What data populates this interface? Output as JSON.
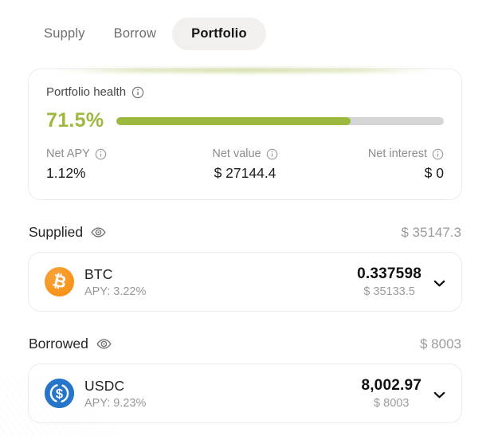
{
  "tabs": [
    {
      "label": "Supply",
      "active": false
    },
    {
      "label": "Borrow",
      "active": false
    },
    {
      "label": "Portfolio",
      "active": true
    }
  ],
  "health": {
    "title": "Portfolio health",
    "percent_label": "71.5%",
    "percent_value": 71.5,
    "stats": [
      {
        "label": "Net APY",
        "value": "1.12%"
      },
      {
        "label": "Net value",
        "value": "$ 27144.4"
      },
      {
        "label": "Net interest",
        "value": "$ 0"
      }
    ]
  },
  "sections": [
    {
      "title": "Supplied",
      "total": "$ 35147.3",
      "asset": {
        "symbol": "BTC",
        "icon": "btc-icon",
        "apy": "APY: 3.22%",
        "amount": "0.337598",
        "usd": "$ 35133.5"
      }
    },
    {
      "title": "Borrowed",
      "total": "$ 8003",
      "asset": {
        "symbol": "USDC",
        "icon": "usdc-icon",
        "apy": "APY: 9.23%",
        "amount": "8,002.97",
        "usd": "$ 8003"
      }
    }
  ],
  "icons": {
    "btc_glyph": "₿",
    "usdc_glyph": "$"
  },
  "colors": {
    "accent_green": "#9cb83e",
    "track_gray": "#d6d6d6",
    "btc_orange": "#f7931a",
    "usdc_blue": "#2775ca"
  }
}
